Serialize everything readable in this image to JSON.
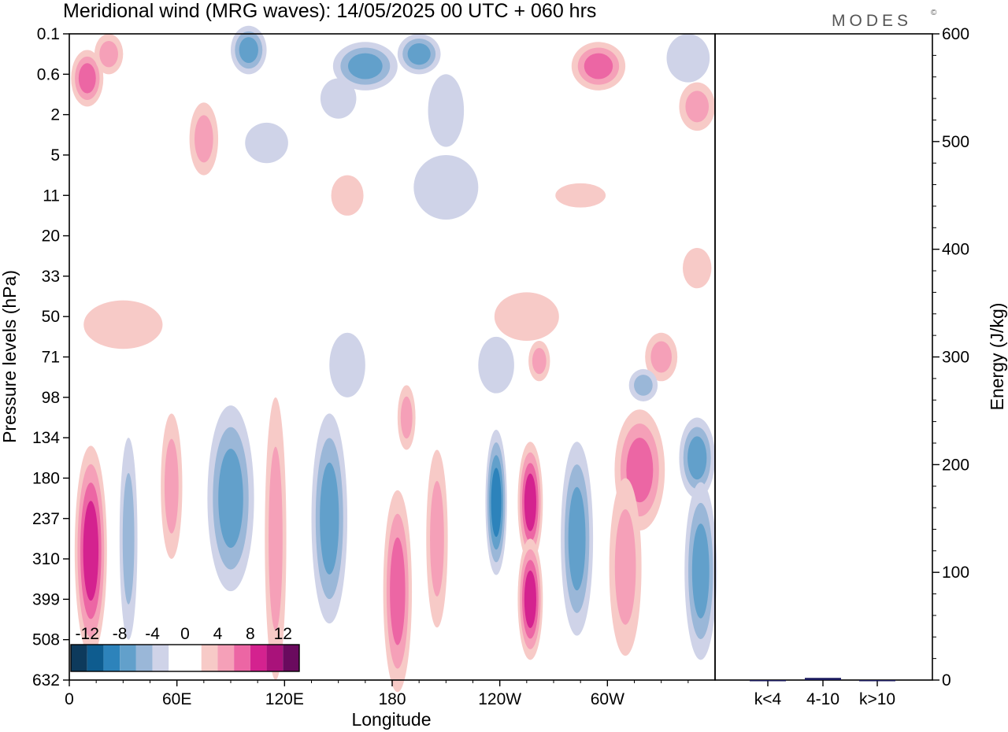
{
  "chart_data": {
    "type": "heatmap",
    "title": "Meridional wind (MRG waves):  14/05/2025  00 UTC  + 060 hrs",
    "brand": "MODES",
    "brand_mark": "©",
    "xlabel": "Longitude",
    "ylabel": "Pressure levels (hPa)",
    "x_ticks": [
      "0",
      "60E",
      "120E",
      "180",
      "120W",
      "60W"
    ],
    "y_ticks": [
      "0.1",
      "0.6",
      "2",
      "5",
      "11",
      "20",
      "33",
      "50",
      "71",
      "98",
      "134",
      "180",
      "237",
      "310",
      "399",
      "508",
      "632"
    ],
    "colorbar": {
      "tick_labels": [
        "-12",
        "-8",
        "-4",
        "0",
        "4",
        "8",
        "12"
      ],
      "colors": [
        "#0d3a5c",
        "#0e5c8f",
        "#2d83bb",
        "#62a0cb",
        "#9ab7d8",
        "#cfd3e8",
        "#ffffff",
        "#ffffff",
        "#f7cac7",
        "#f5a0b8",
        "#ec66a4",
        "#d4228f",
        "#a9127a",
        "#6a0a5e"
      ]
    },
    "contour_blobs": [
      {
        "lon": 10,
        "p_idx": 1.1,
        "lon_half": 9,
        "lev_half": 0.7,
        "value": 10
      },
      {
        "lon": 22,
        "p_idx": 0.5,
        "lon_half": 8,
        "lev_half": 0.5,
        "value": 7
      },
      {
        "lon": 100,
        "p_idx": 0.4,
        "lon_half": 10,
        "lev_half": 0.6,
        "value": -8
      },
      {
        "lon": 165,
        "p_idx": 0.8,
        "lon_half": 18,
        "lev_half": 0.6,
        "value": -9
      },
      {
        "lon": 195,
        "p_idx": 0.5,
        "lon_half": 12,
        "lev_half": 0.5,
        "value": -10
      },
      {
        "lon": 150,
        "p_idx": 1.6,
        "lon_half": 10,
        "lev_half": 0.5,
        "value": -3
      },
      {
        "lon": 210,
        "p_idx": 1.9,
        "lon_half": 10,
        "lev_half": 0.9,
        "value": -3
      },
      {
        "lon": 295,
        "p_idx": 0.8,
        "lon_half": 15,
        "lev_half": 0.6,
        "value": 10
      },
      {
        "lon": 345,
        "p_idx": 0.6,
        "lon_half": 12,
        "lev_half": 0.6,
        "value": -3
      },
      {
        "lon": 350,
        "p_idx": 1.8,
        "lon_half": 10,
        "lev_half": 0.6,
        "value": 6
      },
      {
        "lon": 75,
        "p_idx": 2.6,
        "lon_half": 8,
        "lev_half": 0.9,
        "value": 5
      },
      {
        "lon": 110,
        "p_idx": 2.7,
        "lon_half": 12,
        "lev_half": 0.5,
        "value": -3
      },
      {
        "lon": 210,
        "p_idx": 3.8,
        "lon_half": 18,
        "lev_half": 0.8,
        "value": -3
      },
      {
        "lon": 155,
        "p_idx": 4.0,
        "lon_half": 9,
        "lev_half": 0.5,
        "value": 3
      },
      {
        "lon": 285,
        "p_idx": 4.0,
        "lon_half": 14,
        "lev_half": 0.3,
        "value": 3
      },
      {
        "lon": 350,
        "p_idx": 5.8,
        "lon_half": 8,
        "lev_half": 0.5,
        "value": 3
      },
      {
        "lon": 255,
        "p_idx": 7.0,
        "lon_half": 18,
        "lev_half": 0.6,
        "value": 3
      },
      {
        "lon": 30,
        "p_idx": 7.2,
        "lon_half": 22,
        "lev_half": 0.6,
        "value": 3
      },
      {
        "lon": 262,
        "p_idx": 8.1,
        "lon_half": 6,
        "lev_half": 0.5,
        "value": 6
      },
      {
        "lon": 330,
        "p_idx": 8.0,
        "lon_half": 9,
        "lev_half": 0.6,
        "value": 7
      },
      {
        "lon": 320,
        "p_idx": 8.7,
        "lon_half": 8,
        "lev_half": 0.4,
        "value": -6
      },
      {
        "lon": 155,
        "p_idx": 8.2,
        "lon_half": 10,
        "lev_half": 0.8,
        "value": -3
      },
      {
        "lon": 238,
        "p_idx": 8.2,
        "lon_half": 10,
        "lev_half": 0.7,
        "value": -3
      },
      {
        "lon": 188,
        "p_idx": 9.5,
        "lon_half": 5,
        "lev_half": 0.8,
        "value": 6
      },
      {
        "lon": 12,
        "p_idx": 12.8,
        "lon_half": 9,
        "lev_half": 2.6,
        "value": 13
      },
      {
        "lon": 33,
        "p_idx": 12.5,
        "lon_half": 5,
        "lev_half": 2.5,
        "value": -4
      },
      {
        "lon": 57,
        "p_idx": 11.2,
        "lon_half": 6,
        "lev_half": 1.8,
        "value": 6
      },
      {
        "lon": 90,
        "p_idx": 11.5,
        "lon_half": 13,
        "lev_half": 2.3,
        "value": -9
      },
      {
        "lon": 115,
        "p_idx": 12.5,
        "lon_half": 6,
        "lev_half": 3.5,
        "value": 5
      },
      {
        "lon": 145,
        "p_idx": 12.0,
        "lon_half": 10,
        "lev_half": 2.6,
        "value": -8
      },
      {
        "lon": 183,
        "p_idx": 13.8,
        "lon_half": 8,
        "lev_half": 2.5,
        "value": 8
      },
      {
        "lon": 205,
        "p_idx": 12.5,
        "lon_half": 6,
        "lev_half": 2.2,
        "value": 5
      },
      {
        "lon": 238,
        "p_idx": 11.6,
        "lon_half": 6,
        "lev_half": 1.8,
        "value": -12
      },
      {
        "lon": 257,
        "p_idx": 11.6,
        "lon_half": 7,
        "lev_half": 1.5,
        "value": 15
      },
      {
        "lon": 257,
        "p_idx": 14.0,
        "lon_half": 7,
        "lev_half": 1.5,
        "value": 11
      },
      {
        "lon": 283,
        "p_idx": 12.5,
        "lon_half": 9,
        "lev_half": 2.4,
        "value": -8
      },
      {
        "lon": 318,
        "p_idx": 10.8,
        "lon_half": 14,
        "lev_half": 1.5,
        "value": 10
      },
      {
        "lon": 310,
        "p_idx": 13.2,
        "lon_half": 9,
        "lev_half": 2.2,
        "value": 5
      },
      {
        "lon": 350,
        "p_idx": 10.5,
        "lon_half": 10,
        "lev_half": 1.0,
        "value": -9
      },
      {
        "lon": 352,
        "p_idx": 13.3,
        "lon_half": 9,
        "lev_half": 2.2,
        "value": -10
      }
    ],
    "energy_panel": {
      "ylabel": "Energy (J/kg)",
      "y_ticks": [
        "0",
        "100",
        "200",
        "300",
        "400",
        "500",
        "600"
      ],
      "ylim": [
        0,
        600
      ],
      "categories": [
        "k<4",
        "4-10",
        "k>10"
      ],
      "values": [
        0,
        2,
        0
      ],
      "bar_color": "#1a1a5e"
    }
  }
}
